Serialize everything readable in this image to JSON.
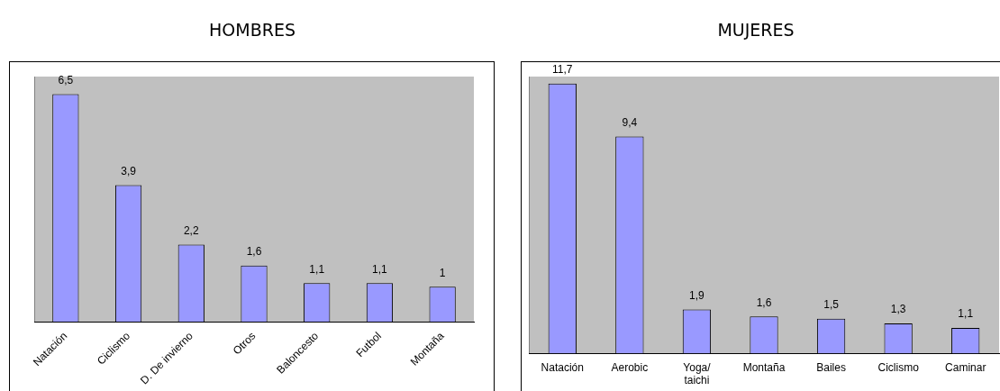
{
  "chart_data": [
    {
      "type": "bar",
      "title": "HOMBRES",
      "categories": [
        "Natación",
        "Ciclismo",
        "D. De invierno",
        "Otros",
        "Baloncesto",
        "Futbol",
        "Montaña"
      ],
      "values": [
        6.5,
        3.9,
        2.2,
        1.6,
        1.1,
        1.1,
        1
      ],
      "value_labels": [
        "6,5",
        "3,9",
        "2,2",
        "1,6",
        "1,1",
        "1,1",
        "1"
      ],
      "color": "#9999ff",
      "grid": false,
      "legend": false
    },
    {
      "type": "bar",
      "title": "MUJERES",
      "categories": [
        "Natación",
        "Aerobic",
        "Yoga/\ntaichi",
        "Montaña",
        "Bailes",
        "Ciclismo",
        "Caminar"
      ],
      "values": [
        11.7,
        9.4,
        1.9,
        1.6,
        1.5,
        1.3,
        1.1
      ],
      "value_labels": [
        "11,7",
        "9,4",
        "1,9",
        "1,6",
        "1,5",
        "1,3",
        "1,1"
      ],
      "color": "#9999ff",
      "grid": false,
      "legend": false
    }
  ]
}
